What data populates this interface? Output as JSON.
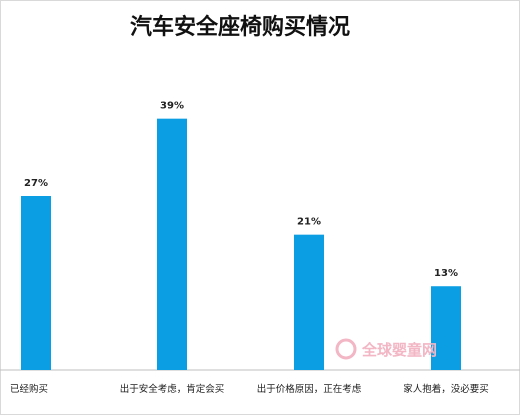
{
  "chart_data": {
    "type": "bar",
    "title": "汽车安全座椅购买情况",
    "categories": [
      "已经购买",
      "出于安全考虑，肯定会买",
      "出于价格原因，正在考虑",
      "家人抱着，没必要买"
    ],
    "values": [
      27,
      39,
      21,
      13
    ],
    "value_labels": [
      "27%",
      "39%",
      "21%",
      "13%"
    ],
    "ylim": [
      0,
      45
    ],
    "grid": false,
    "legend": "none",
    "bar_color": "#0b9ee3"
  },
  "watermark": {
    "text": "全球婴童网",
    "color": "#f2b6c4"
  }
}
